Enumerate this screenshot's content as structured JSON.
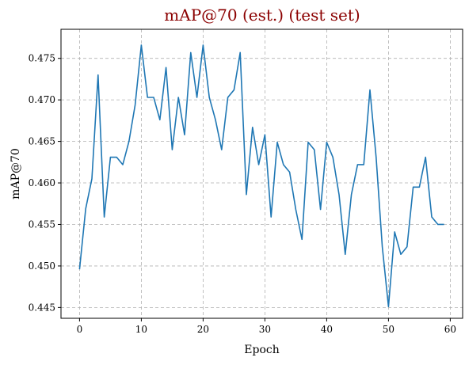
{
  "chart_data": {
    "type": "line",
    "title": "mAP@70 (est.) (test set)",
    "title_color": "#8b0000",
    "xlabel": "Epoch",
    "ylabel": "mAP@70",
    "xlim": [
      -3,
      62
    ],
    "ylim": [
      0.4437,
      0.4785
    ],
    "xticks": [
      0,
      10,
      20,
      30,
      40,
      50,
      60
    ],
    "yticks": [
      0.445,
      0.45,
      0.455,
      0.46,
      0.465,
      0.47,
      0.475
    ],
    "ytick_labels": [
      "0.445",
      "0.450",
      "0.455",
      "0.460",
      "0.465",
      "0.470",
      "0.475"
    ],
    "grid": true,
    "line_color": "#1f77b4",
    "x": [
      0,
      1,
      2,
      3,
      4,
      5,
      6,
      7,
      8,
      9,
      10,
      11,
      12,
      13,
      14,
      15,
      16,
      17,
      18,
      19,
      20,
      21,
      22,
      23,
      24,
      25,
      26,
      27,
      28,
      29,
      30,
      31,
      32,
      33,
      34,
      35,
      36,
      37,
      38,
      39,
      40,
      41,
      42,
      43,
      44,
      45,
      46,
      47,
      48,
      49,
      50,
      51,
      52,
      53,
      54,
      55,
      56,
      57,
      58,
      59
    ],
    "y": [
      0.4496,
      0.4569,
      0.4605,
      0.473,
      0.4559,
      0.4631,
      0.4631,
      0.4622,
      0.465,
      0.4694,
      0.4766,
      0.4703,
      0.4703,
      0.4676,
      0.4739,
      0.464,
      0.4703,
      0.4658,
      0.4757,
      0.4703,
      0.4766,
      0.4703,
      0.4676,
      0.464,
      0.4703,
      0.4712,
      0.4757,
      0.4586,
      0.4667,
      0.4622,
      0.4658,
      0.4559,
      0.4649,
      0.4622,
      0.4613,
      0.4568,
      0.4532,
      0.4649,
      0.464,
      0.4568,
      0.4649,
      0.4631,
      0.4586,
      0.4514,
      0.4586,
      0.4622,
      0.4622,
      0.4712,
      0.4631,
      0.4523,
      0.4451,
      0.4541,
      0.4514,
      0.4523,
      0.4595,
      0.4595,
      0.4631,
      0.4559,
      0.455,
      0.455
    ]
  }
}
